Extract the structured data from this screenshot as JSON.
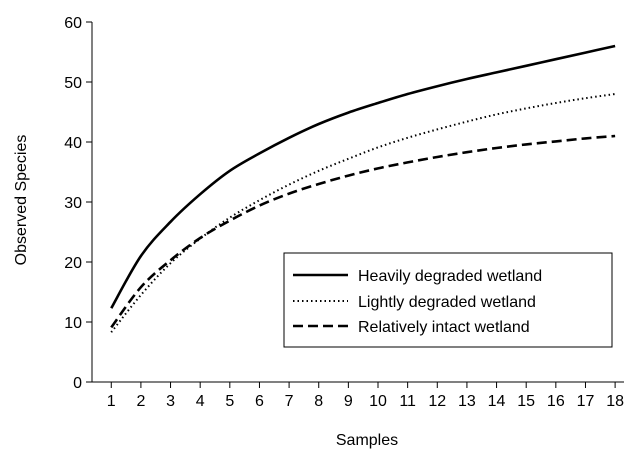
{
  "chart_data": {
    "type": "line",
    "title": "",
    "xlabel": "Samples",
    "ylabel": "Observed Species",
    "x": [
      1,
      2,
      3,
      4,
      5,
      6,
      7,
      8,
      9,
      10,
      11,
      12,
      13,
      14,
      15,
      16,
      17,
      18
    ],
    "xlim": [
      0.35,
      18.3
    ],
    "ylim": [
      0,
      60
    ],
    "yticks": [
      0,
      10,
      20,
      30,
      40,
      50,
      60
    ],
    "grid": false,
    "legend_position": "bottom-right",
    "series": [
      {
        "name": "Heavily degraded wetland",
        "style": "solid",
        "values": [
          12.3,
          21.0,
          26.7,
          31.3,
          35.2,
          38.1,
          40.7,
          43.0,
          44.9,
          46.5,
          48.0,
          49.3,
          50.5,
          51.6,
          52.7,
          53.8,
          54.9,
          56.0
        ]
      },
      {
        "name": "Lightly degraded wetland",
        "style": "dotted",
        "values": [
          8.3,
          14.5,
          19.8,
          23.9,
          27.4,
          30.3,
          32.9,
          35.2,
          37.2,
          39.1,
          40.7,
          42.1,
          43.4,
          44.6,
          45.6,
          46.5,
          47.3,
          48.0
        ]
      },
      {
        "name": "Relatively intact wetland",
        "style": "dashed",
        "values": [
          9.1,
          15.8,
          20.3,
          24.0,
          26.9,
          29.4,
          31.4,
          33.0,
          34.4,
          35.6,
          36.6,
          37.5,
          38.3,
          39.0,
          39.6,
          40.1,
          40.6,
          41.0
        ]
      }
    ]
  }
}
